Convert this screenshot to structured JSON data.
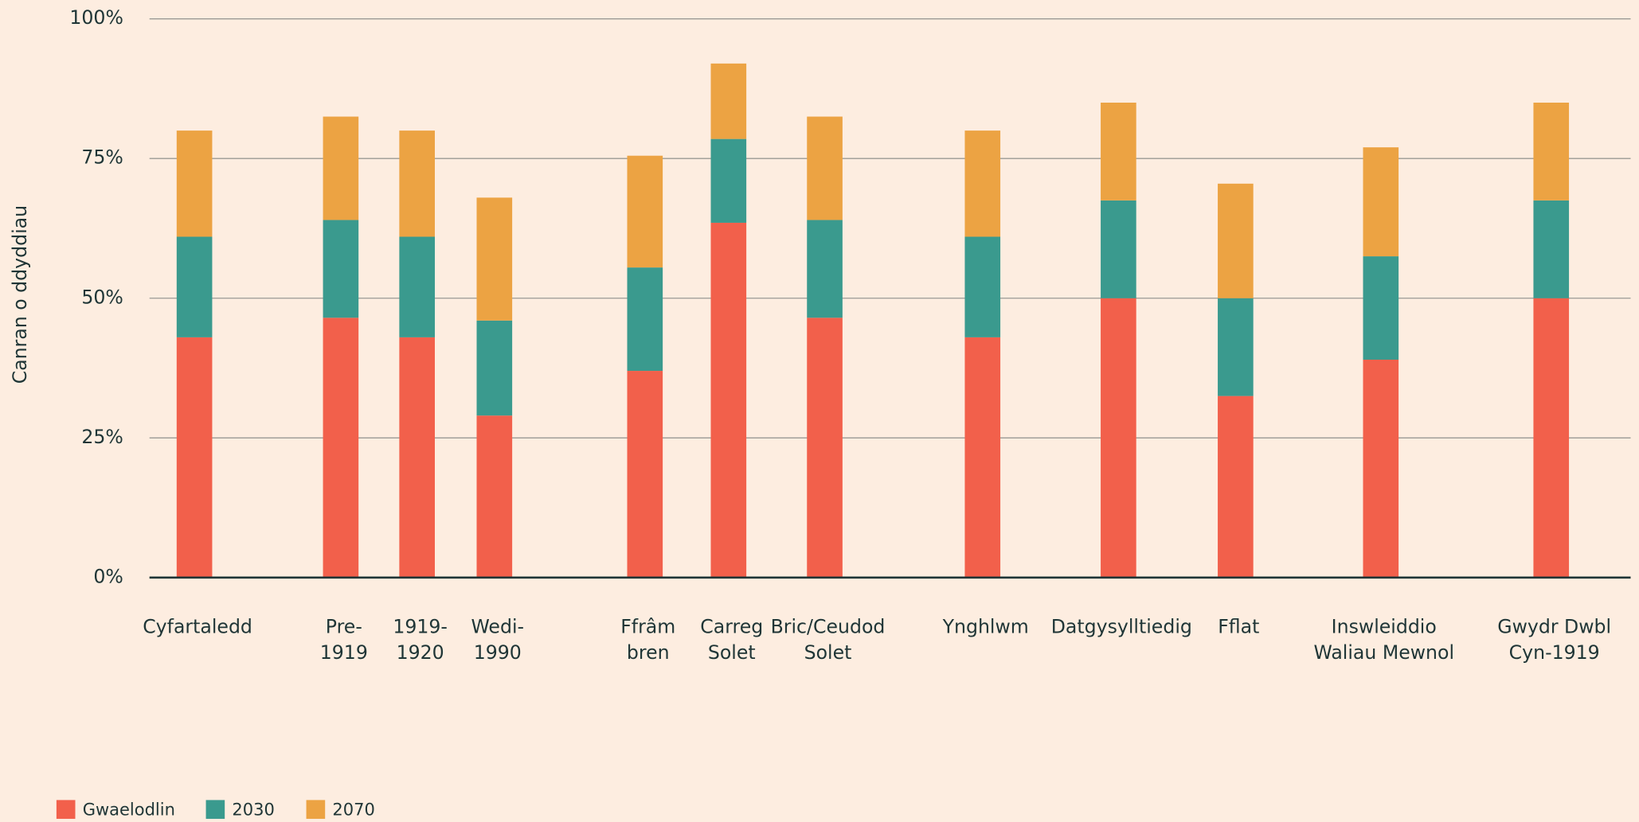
{
  "chart_data": {
    "type": "stacked_bar",
    "y_label": "Canran o ddyddiau",
    "categories": [
      [
        "Cyfartaledd"
      ],
      [
        "Pre-",
        "1919"
      ],
      [
        "1919-",
        "1920"
      ],
      [
        "Wedi-",
        "1990"
      ],
      [
        "Ffrâm",
        "bren"
      ],
      [
        "Carreg",
        "Solet"
      ],
      [
        "Bric/Ceudod",
        "Solet"
      ],
      [
        "Ynghlwm"
      ],
      [
        "Datgysylltiedig"
      ],
      [
        "Fflat"
      ],
      [
        "Inswleiddio",
        "Waliau Mewnol"
      ],
      [
        "Gwydr Dwbl",
        "Cyn-1919"
      ]
    ],
    "series": [
      {
        "name": "Gwaelodlin",
        "color": "#f2604b",
        "values": [
          43,
          46.5,
          43,
          29,
          37,
          63.5,
          46.5,
          43,
          50,
          32.5,
          39,
          50
        ]
      },
      {
        "name": "2030",
        "color": "#3a9a8e",
        "values": [
          18,
          17.5,
          18,
          17,
          18.5,
          15,
          17.5,
          18,
          17.5,
          17.5,
          18.5,
          17.5
        ]
      },
      {
        "name": "2070",
        "color": "#eca343",
        "values": [
          19,
          18.5,
          19,
          22,
          20,
          13.5,
          18.5,
          19,
          17.5,
          20.5,
          19.5,
          17.5
        ]
      }
    ],
    "ylim": [
      0,
      100
    ],
    "yticks": [
      {
        "value": 0,
        "label": "0%"
      },
      {
        "value": 25,
        "label": "25%"
      },
      {
        "value": 50,
        "label": "50%"
      },
      {
        "value": 75,
        "label": "75%"
      },
      {
        "value": 100,
        "label": "100%"
      }
    ],
    "grid": true,
    "legend": "bottom-left"
  }
}
